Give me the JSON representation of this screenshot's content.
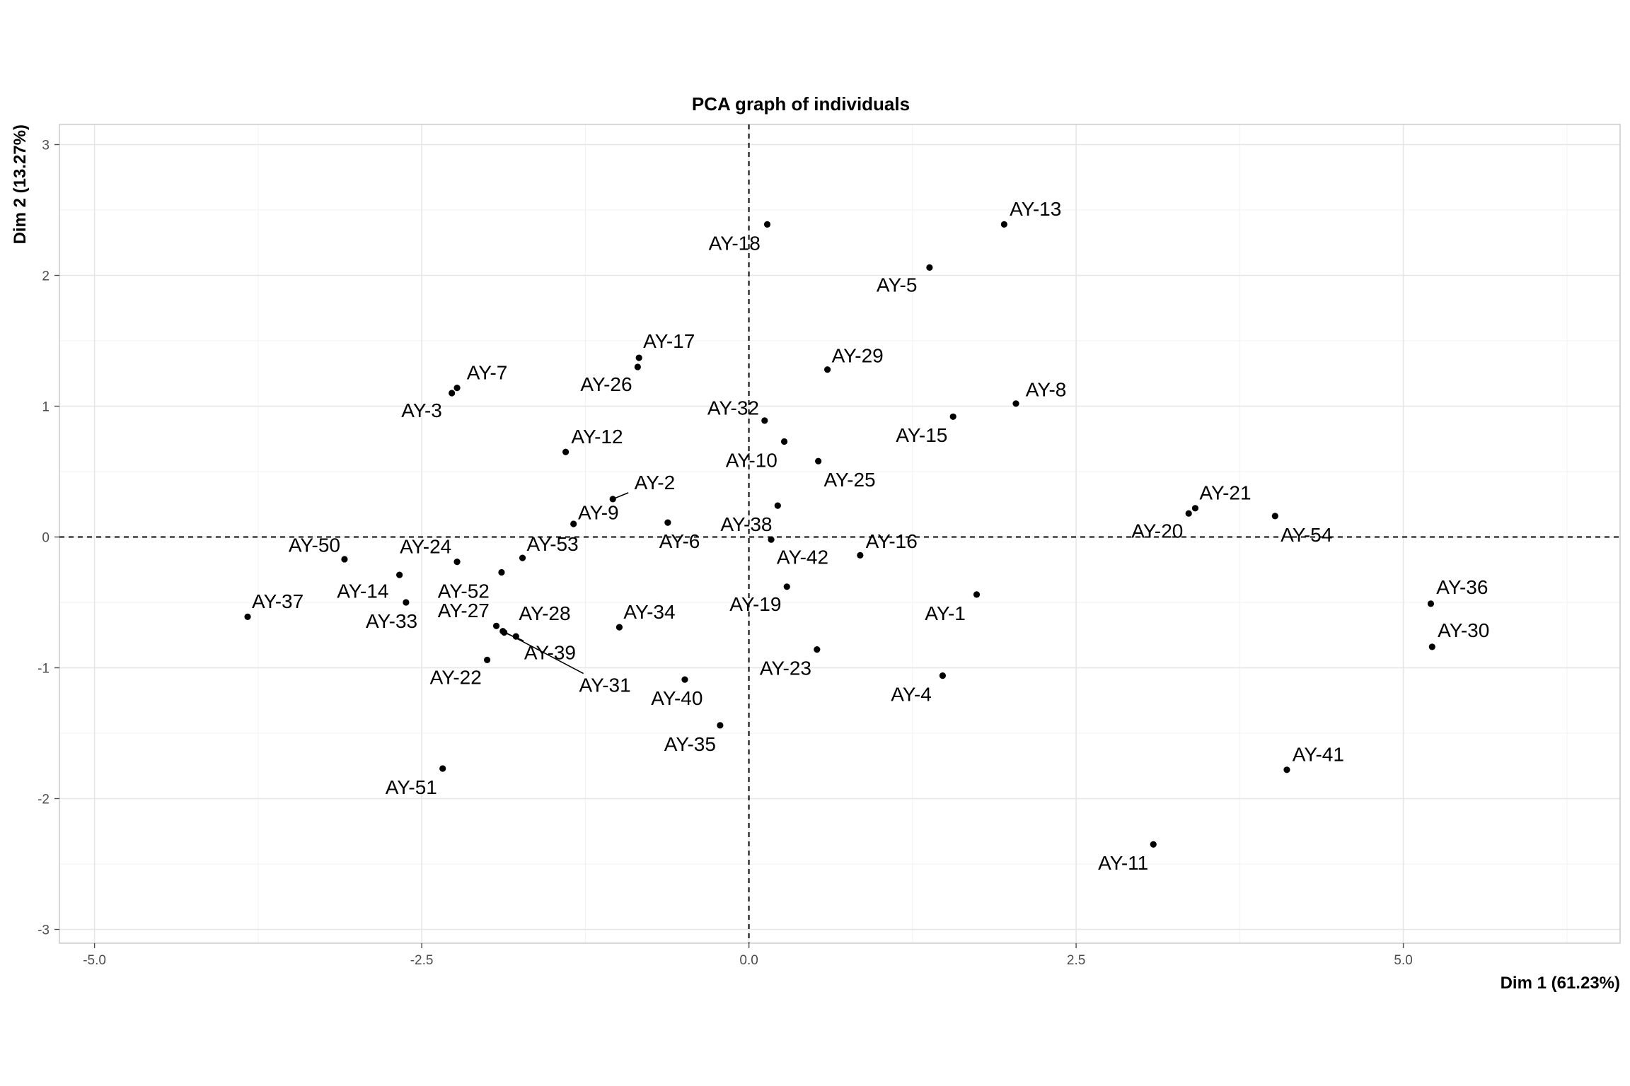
{
  "chart_data": {
    "type": "scatter",
    "title": "PCA graph of individuals",
    "xlabel": "Dim 1 (61.23%)",
    "ylabel": "Dim 2 (13.27%)",
    "xlim": [
      -5.3,
      6.7
    ],
    "ylim": [
      -3.1,
      3.15
    ],
    "x_ticks": [
      -5.0,
      -2.5,
      0.0,
      2.5,
      5.0
    ],
    "x_tick_labels": [
      "-5.0",
      "-2.5",
      "0.0",
      "2.5",
      "5.0"
    ],
    "y_ticks": [
      -3,
      -2,
      -1,
      0,
      1,
      2,
      3
    ],
    "y_tick_labels": [
      "-3",
      "-2",
      "-1",
      "0",
      "1",
      "2",
      "3"
    ],
    "grid": true,
    "reference_lines": {
      "x": 0,
      "y": 0,
      "style": "dashed"
    },
    "points": [
      {
        "label": "AY-1",
        "x": 1.74,
        "y": -0.44,
        "label_pos": [
          1.5,
          -0.58
        ]
      },
      {
        "label": "AY-2",
        "x": -1.04,
        "y": 0.29,
        "label_pos": [
          -0.72,
          0.42
        ]
      },
      {
        "label": "AY-3",
        "x": -2.27,
        "y": 1.1,
        "label_pos": [
          -2.5,
          0.97
        ]
      },
      {
        "label": "AY-4",
        "x": 1.48,
        "y": -1.06,
        "label_pos": [
          1.24,
          -1.2
        ]
      },
      {
        "label": "AY-5",
        "x": 1.38,
        "y": 2.06,
        "label_pos": [
          1.13,
          1.93
        ]
      },
      {
        "label": "AY-6",
        "x": -0.62,
        "y": 0.11,
        "label_pos": [
          -0.53,
          -0.03
        ]
      },
      {
        "label": "AY-7",
        "x": -2.23,
        "y": 1.14,
        "label_pos": [
          -2.0,
          1.26
        ]
      },
      {
        "label": "AY-8",
        "x": 2.04,
        "y": 1.02,
        "label_pos": [
          2.27,
          1.13
        ]
      },
      {
        "label": "AY-9",
        "x": -1.34,
        "y": 0.1,
        "label_pos": [
          -1.15,
          0.19
        ]
      },
      {
        "label": "AY-10",
        "x": 0.27,
        "y": 0.73,
        "label_pos": [
          0.02,
          0.59
        ]
      },
      {
        "label": "AY-11",
        "x": 3.09,
        "y": -2.35,
        "label_pos": [
          2.86,
          -2.49
        ]
      },
      {
        "label": "AY-12",
        "x": -1.4,
        "y": 0.65,
        "label_pos": [
          -1.16,
          0.77
        ]
      },
      {
        "label": "AY-13",
        "x": 1.95,
        "y": 2.39,
        "label_pos": [
          2.19,
          2.51
        ]
      },
      {
        "label": "AY-14",
        "x": -2.67,
        "y": -0.29,
        "label_pos": [
          -2.95,
          -0.41
        ]
      },
      {
        "label": "AY-15",
        "x": 1.56,
        "y": 0.92,
        "label_pos": [
          1.32,
          0.78
        ]
      },
      {
        "label": "AY-16",
        "x": 0.85,
        "y": -0.14,
        "label_pos": [
          1.09,
          -0.03
        ]
      },
      {
        "label": "AY-17",
        "x": -0.84,
        "y": 1.37,
        "label_pos": [
          -0.61,
          1.5
        ]
      },
      {
        "label": "AY-18",
        "x": 0.14,
        "y": 2.39,
        "label_pos": [
          -0.11,
          2.25
        ]
      },
      {
        "label": "AY-19",
        "x": 0.29,
        "y": -0.38,
        "label_pos": [
          0.05,
          -0.51
        ]
      },
      {
        "label": "AY-20",
        "x": 3.36,
        "y": 0.18,
        "label_pos": [
          3.12,
          0.05
        ]
      },
      {
        "label": "AY-21",
        "x": 3.41,
        "y": 0.22,
        "label_pos": [
          3.64,
          0.34
        ]
      },
      {
        "label": "AY-22",
        "x": -2.0,
        "y": -0.94,
        "label_pos": [
          -2.24,
          -1.07
        ]
      },
      {
        "label": "AY-23",
        "x": 0.52,
        "y": -0.86,
        "label_pos": [
          0.28,
          -1.0
        ]
      },
      {
        "label": "AY-24",
        "x": -2.23,
        "y": -0.19,
        "label_pos": [
          -2.47,
          -0.07
        ]
      },
      {
        "label": "AY-25",
        "x": 0.53,
        "y": 0.58,
        "label_pos": [
          0.77,
          0.44
        ]
      },
      {
        "label": "AY-26",
        "x": -0.85,
        "y": 1.3,
        "label_pos": [
          -1.09,
          1.17
        ]
      },
      {
        "label": "AY-27",
        "x": -1.93,
        "y": -0.68,
        "label_pos": [
          -2.18,
          -0.56
        ]
      },
      {
        "label": "AY-28",
        "x": -1.78,
        "y": -0.76,
        "label_pos": [
          -1.56,
          -0.58
        ]
      },
      {
        "label": "AY-29",
        "x": 0.6,
        "y": 1.28,
        "label_pos": [
          0.83,
          1.39
        ]
      },
      {
        "label": "AY-30",
        "x": 5.22,
        "y": -0.84,
        "label_pos": [
          5.46,
          -0.71
        ]
      },
      {
        "label": "AY-31",
        "x": -1.88,
        "y": -0.72,
        "label_pos": [
          -1.1,
          -1.13
        ]
      },
      {
        "label": "AY-32",
        "x": 0.12,
        "y": 0.89,
        "label_pos": [
          -0.12,
          0.99
        ]
      },
      {
        "label": "AY-33",
        "x": -2.62,
        "y": -0.5,
        "label_pos": [
          -2.73,
          -0.64
        ]
      },
      {
        "label": "AY-34",
        "x": -0.99,
        "y": -0.69,
        "label_pos": [
          -0.76,
          -0.57
        ]
      },
      {
        "label": "AY-35",
        "x": -0.22,
        "y": -1.44,
        "label_pos": [
          -0.45,
          -1.58
        ]
      },
      {
        "label": "AY-36",
        "x": 5.21,
        "y": -0.51,
        "label_pos": [
          5.45,
          -0.38
        ]
      },
      {
        "label": "AY-37",
        "x": -3.83,
        "y": -0.61,
        "label_pos": [
          -3.6,
          -0.49
        ]
      },
      {
        "label": "AY-38",
        "x": 0.22,
        "y": 0.24,
        "label_pos": [
          -0.02,
          0.1
        ]
      },
      {
        "label": "AY-39",
        "x": -1.87,
        "y": -0.73,
        "label_pos": [
          -1.52,
          -0.88
        ]
      },
      {
        "label": "AY-40",
        "x": -0.49,
        "y": -1.09,
        "label_pos": [
          -0.55,
          -1.23
        ]
      },
      {
        "label": "AY-41",
        "x": 4.11,
        "y": -1.78,
        "label_pos": [
          4.35,
          -1.66
        ]
      },
      {
        "label": "AY-42",
        "x": 0.17,
        "y": -0.02,
        "label_pos": [
          0.41,
          -0.15
        ]
      },
      {
        "label": "AY-50",
        "x": -3.09,
        "y": -0.17,
        "label_pos": [
          -3.32,
          -0.06
        ]
      },
      {
        "label": "AY-51",
        "x": -2.34,
        "y": -1.77,
        "label_pos": [
          -2.58,
          -1.91
        ]
      },
      {
        "label": "AY-52",
        "x": -1.89,
        "y": -0.27,
        "label_pos": [
          -2.18,
          -0.41
        ]
      },
      {
        "label": "AY-53",
        "x": -1.73,
        "y": -0.16,
        "label_pos": [
          -1.5,
          -0.05
        ]
      },
      {
        "label": "AY-54",
        "x": 4.02,
        "y": 0.16,
        "label_pos": [
          4.26,
          0.02
        ]
      }
    ]
  }
}
